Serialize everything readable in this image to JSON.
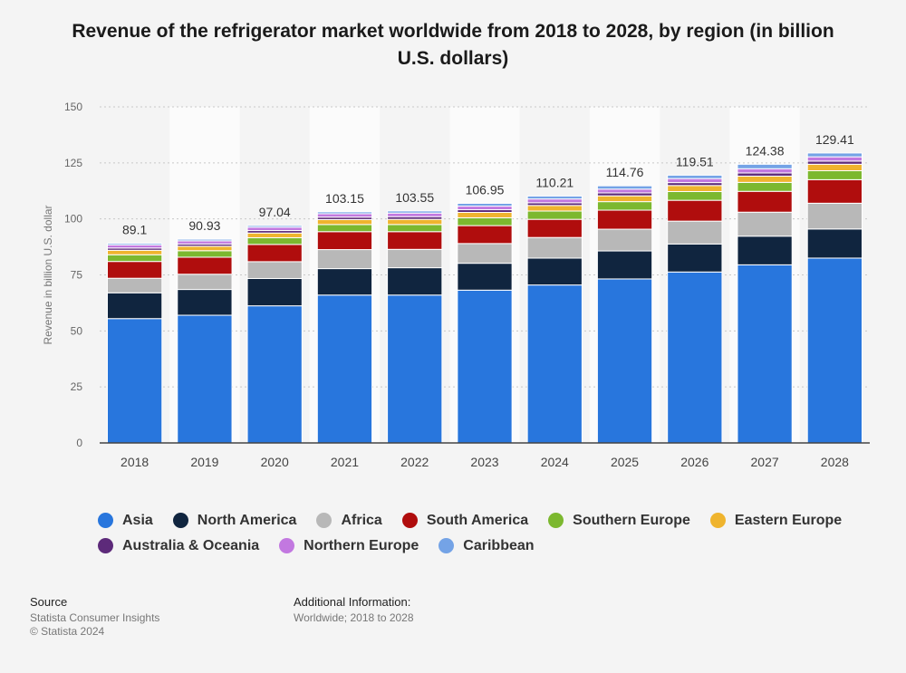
{
  "title": "Revenue of the refrigerator market worldwide from 2018 to 2028, by region (in billion U.S. dollars)",
  "footer": {
    "source_heading": "Source",
    "source_name": "Statista Consumer Insights",
    "copyright": "© Statista 2024",
    "info_heading": "Additional Information:",
    "info_text": "Worldwide; 2018 to 2028"
  },
  "chart_data": {
    "type": "bar",
    "stacked": true,
    "categories": [
      "2018",
      "2019",
      "2020",
      "2021",
      "2022",
      "2023",
      "2024",
      "2025",
      "2026",
      "2027",
      "2028"
    ],
    "ylabel": "Revenue in billion U.S. dollar",
    "ylim": [
      0,
      150
    ],
    "yticks": [
      0,
      25,
      50,
      75,
      100,
      125,
      150
    ],
    "grid": true,
    "legend_position": "bottom",
    "totals": [
      89.1,
      90.93,
      97.04,
      103.15,
      103.55,
      106.95,
      110.21,
      114.76,
      119.51,
      124.38,
      129.41
    ],
    "series": [
      {
        "name": "Asia",
        "color": "#2876dd",
        "values": [
          55.5,
          57.0,
          61.2,
          66.0,
          66.0,
          68.2,
          70.5,
          73.2,
          76.3,
          79.5,
          82.5
        ]
      },
      {
        "name": "North America",
        "color": "#10253f",
        "values": [
          11.5,
          11.5,
          12.2,
          11.8,
          12.2,
          12.0,
          12.0,
          12.5,
          12.5,
          12.8,
          13.0
        ]
      },
      {
        "name": "Africa",
        "color": "#b8b8b8",
        "values": [
          6.5,
          6.8,
          7.5,
          8.5,
          8.2,
          8.8,
          9.2,
          9.7,
          10.2,
          10.7,
          11.5
        ]
      },
      {
        "name": "South America",
        "color": "#b00d0d",
        "values": [
          7.5,
          7.6,
          7.7,
          8.0,
          7.9,
          8.0,
          8.1,
          8.5,
          9.3,
          9.3,
          10.5
        ]
      },
      {
        "name": "Southern Europe",
        "color": "#7cb82f",
        "values": [
          3.0,
          2.9,
          3.0,
          3.2,
          3.2,
          3.5,
          3.7,
          3.8,
          3.9,
          4.0,
          4.0
        ]
      },
      {
        "name": "Eastern Europe",
        "color": "#efb42e",
        "values": [
          2.0,
          2.0,
          2.1,
          2.2,
          2.3,
          2.4,
          2.5,
          2.6,
          2.7,
          2.8,
          2.9
        ]
      },
      {
        "name": "Australia & Oceania",
        "color": "#5d2a7a",
        "values": [
          1.0,
          1.0,
          1.1,
          1.1,
          1.2,
          1.2,
          1.2,
          1.3,
          1.3,
          1.4,
          1.4
        ]
      },
      {
        "name": "Northern Europe",
        "color": "#c278e0",
        "values": [
          1.4,
          1.4,
          1.5,
          1.5,
          1.6,
          1.6,
          1.7,
          1.7,
          1.8,
          1.9,
          1.9
        ]
      },
      {
        "name": "Caribbean",
        "color": "#74a3e6",
        "values": [
          0.7,
          0.73,
          0.74,
          0.85,
          0.95,
          1.25,
          1.31,
          1.46,
          1.51,
          1.98,
          1.71
        ]
      }
    ]
  }
}
